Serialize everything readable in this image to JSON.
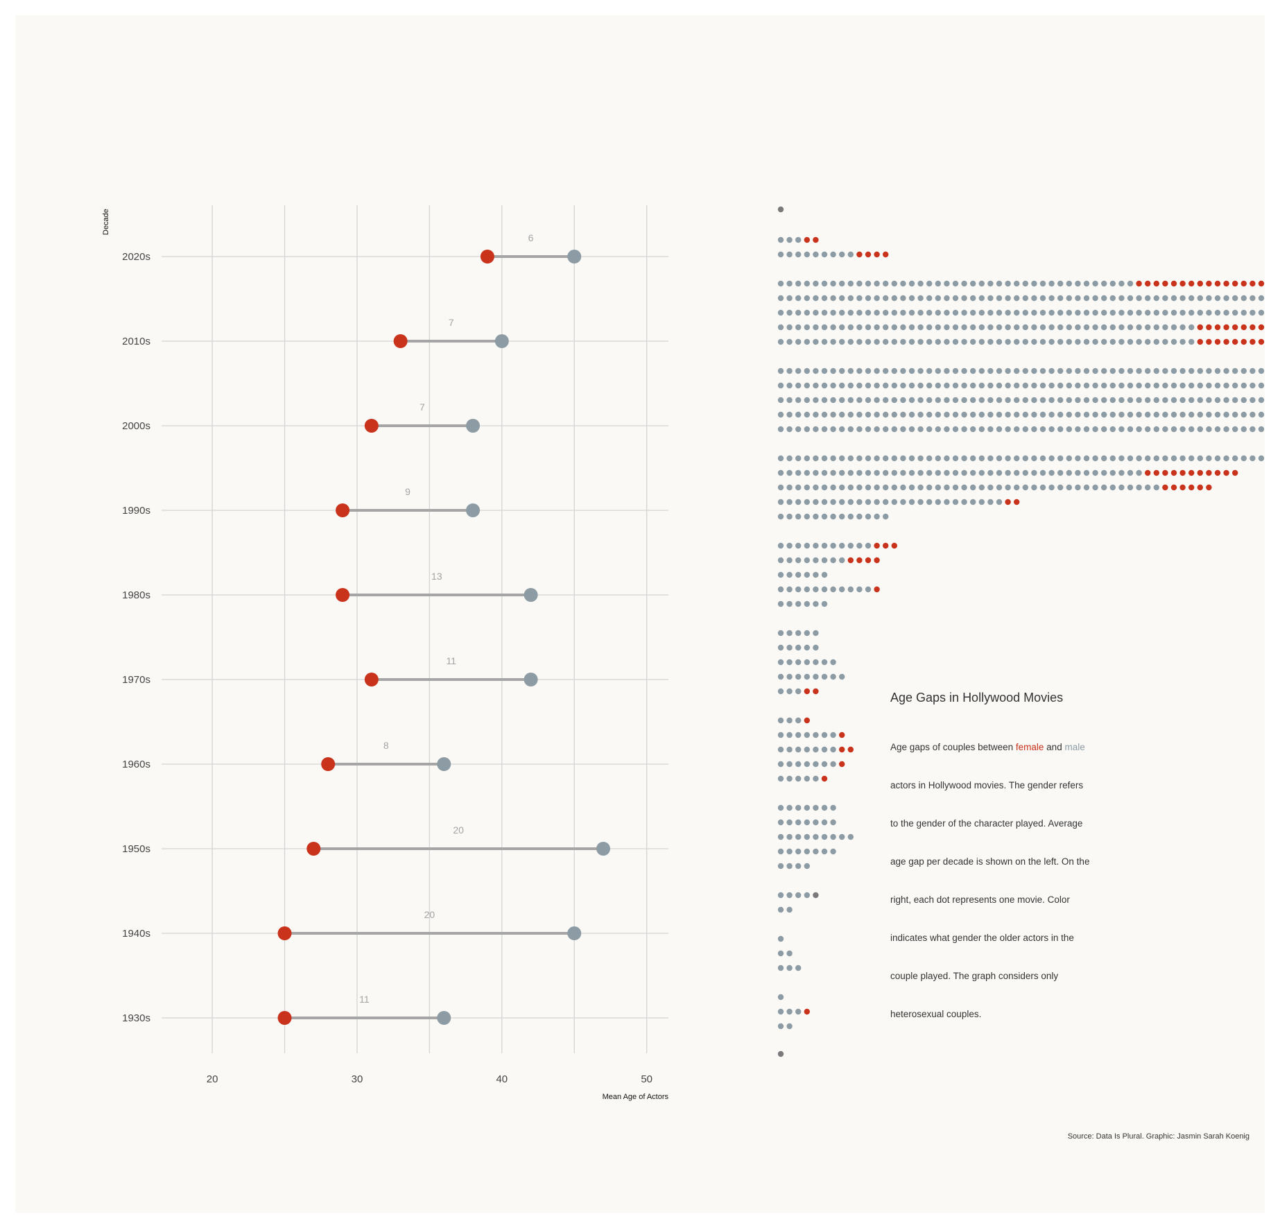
{
  "colors": {
    "female": "#c9321b",
    "male": "#8d9ca4",
    "neutral": "#7a7a7a",
    "line": "#a5a5a5",
    "grid": "#d4d4d4"
  },
  "chart_data": {
    "type": "dumbbell",
    "ylabel": "Decade",
    "xlabel": "Mean Age of Actors",
    "xlim": [
      16.5,
      51.5
    ],
    "xticks": [
      20,
      30,
      40,
      50
    ],
    "grid": true,
    "decades": [
      {
        "label": "2020s",
        "female": 39,
        "male": 45,
        "gap": "6"
      },
      {
        "label": "2010s",
        "female": 33,
        "male": 40,
        "gap": "7"
      },
      {
        "label": "2000s",
        "female": 31,
        "male": 38,
        "gap": "7"
      },
      {
        "label": "1990s",
        "female": 29,
        "male": 38,
        "gap": "9"
      },
      {
        "label": "1980s",
        "female": 29,
        "male": 42,
        "gap": "13"
      },
      {
        "label": "1970s",
        "female": 31,
        "male": 42,
        "gap": "11"
      },
      {
        "label": "1960s",
        "female": 28,
        "male": 36,
        "gap": "8"
      },
      {
        "label": "1950s",
        "female": 27,
        "male": 47,
        "gap": "20"
      },
      {
        "label": "1940s",
        "female": 25,
        "male": 45,
        "gap": "20"
      },
      {
        "label": "1930s",
        "female": 25,
        "male": 36,
        "gap": "11"
      }
    ]
  },
  "dot_matrix": {
    "type": "dot-grid",
    "note": "each dot represents one movie; male = older actor played male, female = older actor played female, neutral = same age",
    "rows": [
      {
        "male": 0,
        "female": 0,
        "neutral": 1
      },
      {
        "male": 3,
        "female": 2,
        "neutral": 0
      },
      {
        "male": 9,
        "female": 4,
        "neutral": 0
      },
      {
        "male": 41,
        "female": 15,
        "neutral": 0
      },
      {
        "male": 56,
        "female": 0,
        "neutral": 0
      },
      {
        "male": 56,
        "female": 0,
        "neutral": 0
      },
      {
        "male": 48,
        "female": 8,
        "neutral": 0
      },
      {
        "male": 48,
        "female": 8,
        "neutral": 0
      },
      {
        "male": 56,
        "female": 0,
        "neutral": 0
      },
      {
        "male": 56,
        "female": 0,
        "neutral": 0
      },
      {
        "male": 56,
        "female": 0,
        "neutral": 0
      },
      {
        "male": 56,
        "female": 0,
        "neutral": 0
      },
      {
        "male": 56,
        "female": 0,
        "neutral": 0
      },
      {
        "male": 56,
        "female": 0,
        "neutral": 0
      },
      {
        "male": 42,
        "female": 11,
        "neutral": 0
      },
      {
        "male": 44,
        "female": 6,
        "neutral": 0
      },
      {
        "male": 26,
        "female": 2,
        "neutral": 0
      },
      {
        "male": 13,
        "female": 0,
        "neutral": 0
      },
      {
        "male": 11,
        "female": 3,
        "neutral": 0
      },
      {
        "male": 8,
        "female": 4,
        "neutral": 0
      },
      {
        "male": 6,
        "female": 0,
        "neutral": 0
      },
      {
        "male": 11,
        "female": 1,
        "neutral": 0
      },
      {
        "male": 6,
        "female": 0,
        "neutral": 0
      },
      {
        "male": 5,
        "female": 0,
        "neutral": 0
      },
      {
        "male": 5,
        "female": 0,
        "neutral": 0
      },
      {
        "male": 7,
        "female": 0,
        "neutral": 0
      },
      {
        "male": 8,
        "female": 0,
        "neutral": 0
      },
      {
        "male": 3,
        "female": 2,
        "neutral": 0
      },
      {
        "male": 3,
        "female": 1,
        "neutral": 0
      },
      {
        "male": 7,
        "female": 1,
        "neutral": 0
      },
      {
        "male": 7,
        "female": 2,
        "neutral": 0
      },
      {
        "male": 7,
        "female": 1,
        "neutral": 0
      },
      {
        "male": 5,
        "female": 1,
        "neutral": 0
      },
      {
        "male": 7,
        "female": 0,
        "neutral": 0
      },
      {
        "male": 7,
        "female": 0,
        "neutral": 0
      },
      {
        "male": 9,
        "female": 0,
        "neutral": 0
      },
      {
        "male": 7,
        "female": 0,
        "neutral": 0
      },
      {
        "male": 4,
        "female": 0,
        "neutral": 0
      },
      {
        "male": 4,
        "female": 0,
        "neutral": 1
      },
      {
        "male": 2,
        "female": 0,
        "neutral": 0
      },
      {
        "male": 1,
        "female": 0,
        "neutral": 0
      },
      {
        "male": 2,
        "female": 0,
        "neutral": 0
      },
      {
        "male": 3,
        "female": 0,
        "neutral": 0
      },
      {
        "male": 1,
        "female": 0,
        "neutral": 0
      },
      {
        "male": 3,
        "female": 1,
        "neutral": 0
      },
      {
        "male": 2,
        "female": 0,
        "neutral": 0
      },
      {
        "male": 0,
        "female": 0,
        "neutral": 1
      }
    ]
  },
  "info": {
    "title": "Age Gaps in Hollywood Movies",
    "line1_pre": "Age gaps of couples between ",
    "line1_female": "female",
    "line1_mid": " and ",
    "line1_male": "male",
    "line2": "actors in Hollywood movies. The gender refers",
    "line3": "to the gender of the character played. Average",
    "line4": "age gap per decade is shown on the left. On the",
    "line5": "right, each dot represents one movie. Color",
    "line6": "indicates what gender the older actors in the",
    "line7": "couple played. The graph considers only",
    "line8": "heterosexual couples."
  },
  "source": "Source: Data Is Plural. Graphic: Jasmin Sarah Koenig"
}
